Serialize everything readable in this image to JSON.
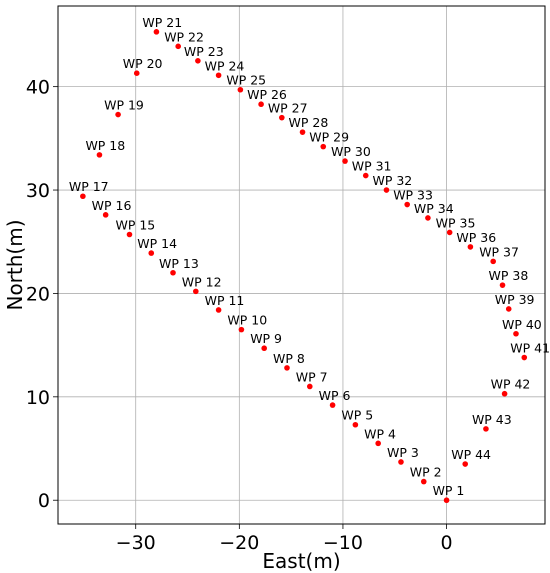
{
  "chart_data": {
    "type": "scatter",
    "xlabel": "East(m)",
    "ylabel": "North(m)",
    "xlim": [
      -37.5,
      9.5
    ],
    "ylim": [
      -2.3,
      47.8
    ],
    "xticks": [
      -30,
      -20,
      -10,
      0
    ],
    "yticks": [
      0,
      10,
      20,
      30,
      40
    ],
    "xtick_labels": [
      "−30",
      "−20",
      "−10",
      "0"
    ],
    "ytick_labels": [
      "0",
      "10",
      "20",
      "30",
      "40"
    ],
    "grid": true,
    "marker_color": "#ff0000",
    "points": [
      {
        "label": "WP 1",
        "x": 0.0,
        "y": 0.0
      },
      {
        "label": "WP 2",
        "x": -2.2,
        "y": 1.8
      },
      {
        "label": "WP 3",
        "x": -4.4,
        "y": 3.7
      },
      {
        "label": "WP 4",
        "x": -6.6,
        "y": 5.5
      },
      {
        "label": "WP 5",
        "x": -8.8,
        "y": 7.3
      },
      {
        "label": "WP 6",
        "x": -11.0,
        "y": 9.2
      },
      {
        "label": "WP 7",
        "x": -13.2,
        "y": 11.0
      },
      {
        "label": "WP 8",
        "x": -15.4,
        "y": 12.8
      },
      {
        "label": "WP 9",
        "x": -17.6,
        "y": 14.7
      },
      {
        "label": "WP 10",
        "x": -19.8,
        "y": 16.5
      },
      {
        "label": "WP 11",
        "x": -22.0,
        "y": 18.4
      },
      {
        "label": "WP 12",
        "x": -24.2,
        "y": 20.2
      },
      {
        "label": "WP 13",
        "x": -26.4,
        "y": 22.0
      },
      {
        "label": "WP 14",
        "x": -28.5,
        "y": 23.9
      },
      {
        "label": "WP 15",
        "x": -30.6,
        "y": 25.7
      },
      {
        "label": "WP 16",
        "x": -32.9,
        "y": 27.6
      },
      {
        "label": "WP 17",
        "x": -35.1,
        "y": 29.4
      },
      {
        "label": "WP 18",
        "x": -33.5,
        "y": 33.4
      },
      {
        "label": "WP 19",
        "x": -31.7,
        "y": 37.3
      },
      {
        "label": "WP 20",
        "x": -29.9,
        "y": 41.3
      },
      {
        "label": "WP 21",
        "x": -28.0,
        "y": 45.3
      },
      {
        "label": "WP 22",
        "x": -25.9,
        "y": 43.9
      },
      {
        "label": "WP 23",
        "x": -24.0,
        "y": 42.5
      },
      {
        "label": "WP 24",
        "x": -22.0,
        "y": 41.1
      },
      {
        "label": "WP 25",
        "x": -19.9,
        "y": 39.7
      },
      {
        "label": "WP 26",
        "x": -17.9,
        "y": 38.3
      },
      {
        "label": "WP 27",
        "x": -15.9,
        "y": 37.0
      },
      {
        "label": "WP 28",
        "x": -13.9,
        "y": 35.6
      },
      {
        "label": "WP 29",
        "x": -11.9,
        "y": 34.2
      },
      {
        "label": "WP 30",
        "x": -9.8,
        "y": 32.8
      },
      {
        "label": "WP 31",
        "x": -7.8,
        "y": 31.4
      },
      {
        "label": "WP 32",
        "x": -5.8,
        "y": 30.0
      },
      {
        "label": "WP 33",
        "x": -3.8,
        "y": 28.6
      },
      {
        "label": "WP 34",
        "x": -1.8,
        "y": 27.3
      },
      {
        "label": "WP 35",
        "x": 0.3,
        "y": 25.9
      },
      {
        "label": "WP 36",
        "x": 2.3,
        "y": 24.5
      },
      {
        "label": "WP 37",
        "x": 4.5,
        "y": 23.1
      },
      {
        "label": "WP 38",
        "x": 5.4,
        "y": 20.8
      },
      {
        "label": "WP 39",
        "x": 6.0,
        "y": 18.5
      },
      {
        "label": "WP 40",
        "x": 6.7,
        "y": 16.1
      },
      {
        "label": "WP 41",
        "x": 7.5,
        "y": 13.8
      },
      {
        "label": "WP 42",
        "x": 5.6,
        "y": 10.3
      },
      {
        "label": "WP 43",
        "x": 3.8,
        "y": 6.9
      },
      {
        "label": "WP 44",
        "x": 1.8,
        "y": 3.5
      }
    ]
  }
}
